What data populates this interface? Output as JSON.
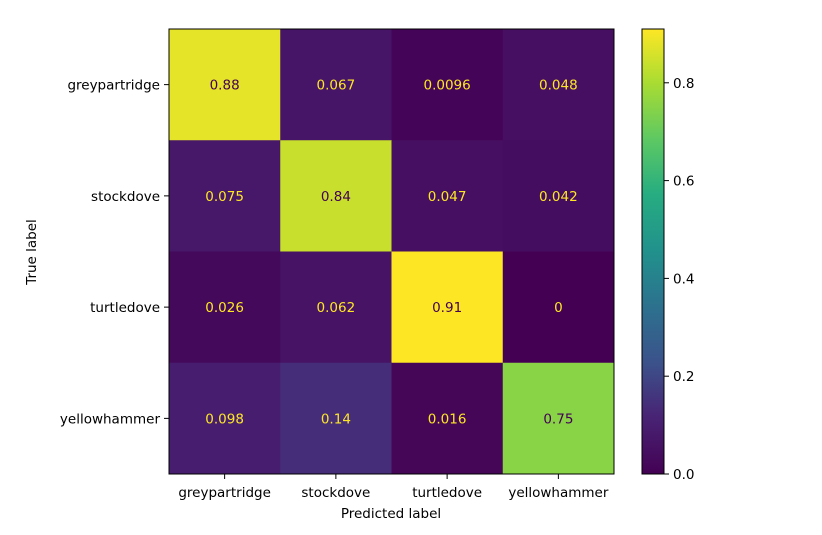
{
  "chart_data": {
    "type": "heatmap",
    "title": "",
    "xlabel": "Predicted label",
    "ylabel": "True label",
    "x_categories": [
      "greypartridge",
      "stockdove",
      "turtledove",
      "yellowhammer"
    ],
    "y_categories": [
      "greypartridge",
      "stockdove",
      "turtledove",
      "yellowhammer"
    ],
    "values": [
      [
        0.88,
        0.067,
        0.0096,
        0.048
      ],
      [
        0.075,
        0.84,
        0.047,
        0.042
      ],
      [
        0.026,
        0.062,
        0.91,
        0
      ],
      [
        0.098,
        0.14,
        0.016,
        0.75
      ]
    ],
    "cell_labels": [
      [
        "0.88",
        "0.067",
        "0.0096",
        "0.048"
      ],
      [
        "0.075",
        "0.84",
        "0.047",
        "0.042"
      ],
      [
        "0.026",
        "0.062",
        "0.91",
        "0"
      ],
      [
        "0.098",
        "0.14",
        "0.016",
        "0.75"
      ]
    ],
    "colormap": "viridis",
    "colorbar": {
      "vmin": 0.0,
      "vmax": 0.91,
      "ticks": [
        0.0,
        0.2,
        0.4,
        0.6,
        0.8
      ],
      "tick_labels": [
        "0.0",
        "0.2",
        "0.4",
        "0.6",
        "0.8"
      ]
    },
    "grid": false,
    "colors": {
      "dark_text": "#440154",
      "light_text": "#fde725"
    }
  }
}
